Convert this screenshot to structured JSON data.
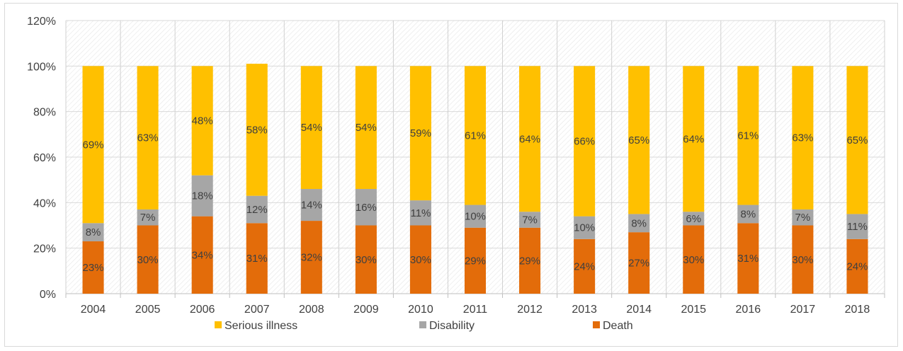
{
  "chart_data": {
    "type": "bar",
    "stacked": true,
    "categories": [
      "2004",
      "2005",
      "2006",
      "2007",
      "2008",
      "2009",
      "2010",
      "2011",
      "2012",
      "2013",
      "2014",
      "2015",
      "2016",
      "2017",
      "2018"
    ],
    "series": [
      {
        "name": "Death",
        "color": "#e36c0a",
        "values": [
          23,
          30,
          34,
          31,
          32,
          30,
          30,
          29,
          29,
          24,
          27,
          30,
          31,
          30,
          24
        ]
      },
      {
        "name": "Disability",
        "color": "#a6a6a6",
        "values": [
          8,
          7,
          18,
          12,
          14,
          16,
          11,
          10,
          7,
          10,
          8,
          6,
          8,
          7,
          11
        ]
      },
      {
        "name": "Serious illness",
        "color": "#ffc000",
        "values": [
          69,
          63,
          48,
          58,
          54,
          54,
          59,
          61,
          64,
          66,
          65,
          64,
          61,
          63,
          65
        ]
      }
    ],
    "ylim": [
      0,
      120
    ],
    "yticks": [
      0,
      20,
      40,
      60,
      80,
      100,
      120
    ],
    "ytick_format": "{v}%",
    "data_label_format": "{v}%",
    "grid": true,
    "legend_position": "bottom",
    "legend_order": [
      "Serious illness",
      "Disability",
      "Death"
    ],
    "title": "",
    "xlabel": "",
    "ylabel": ""
  }
}
